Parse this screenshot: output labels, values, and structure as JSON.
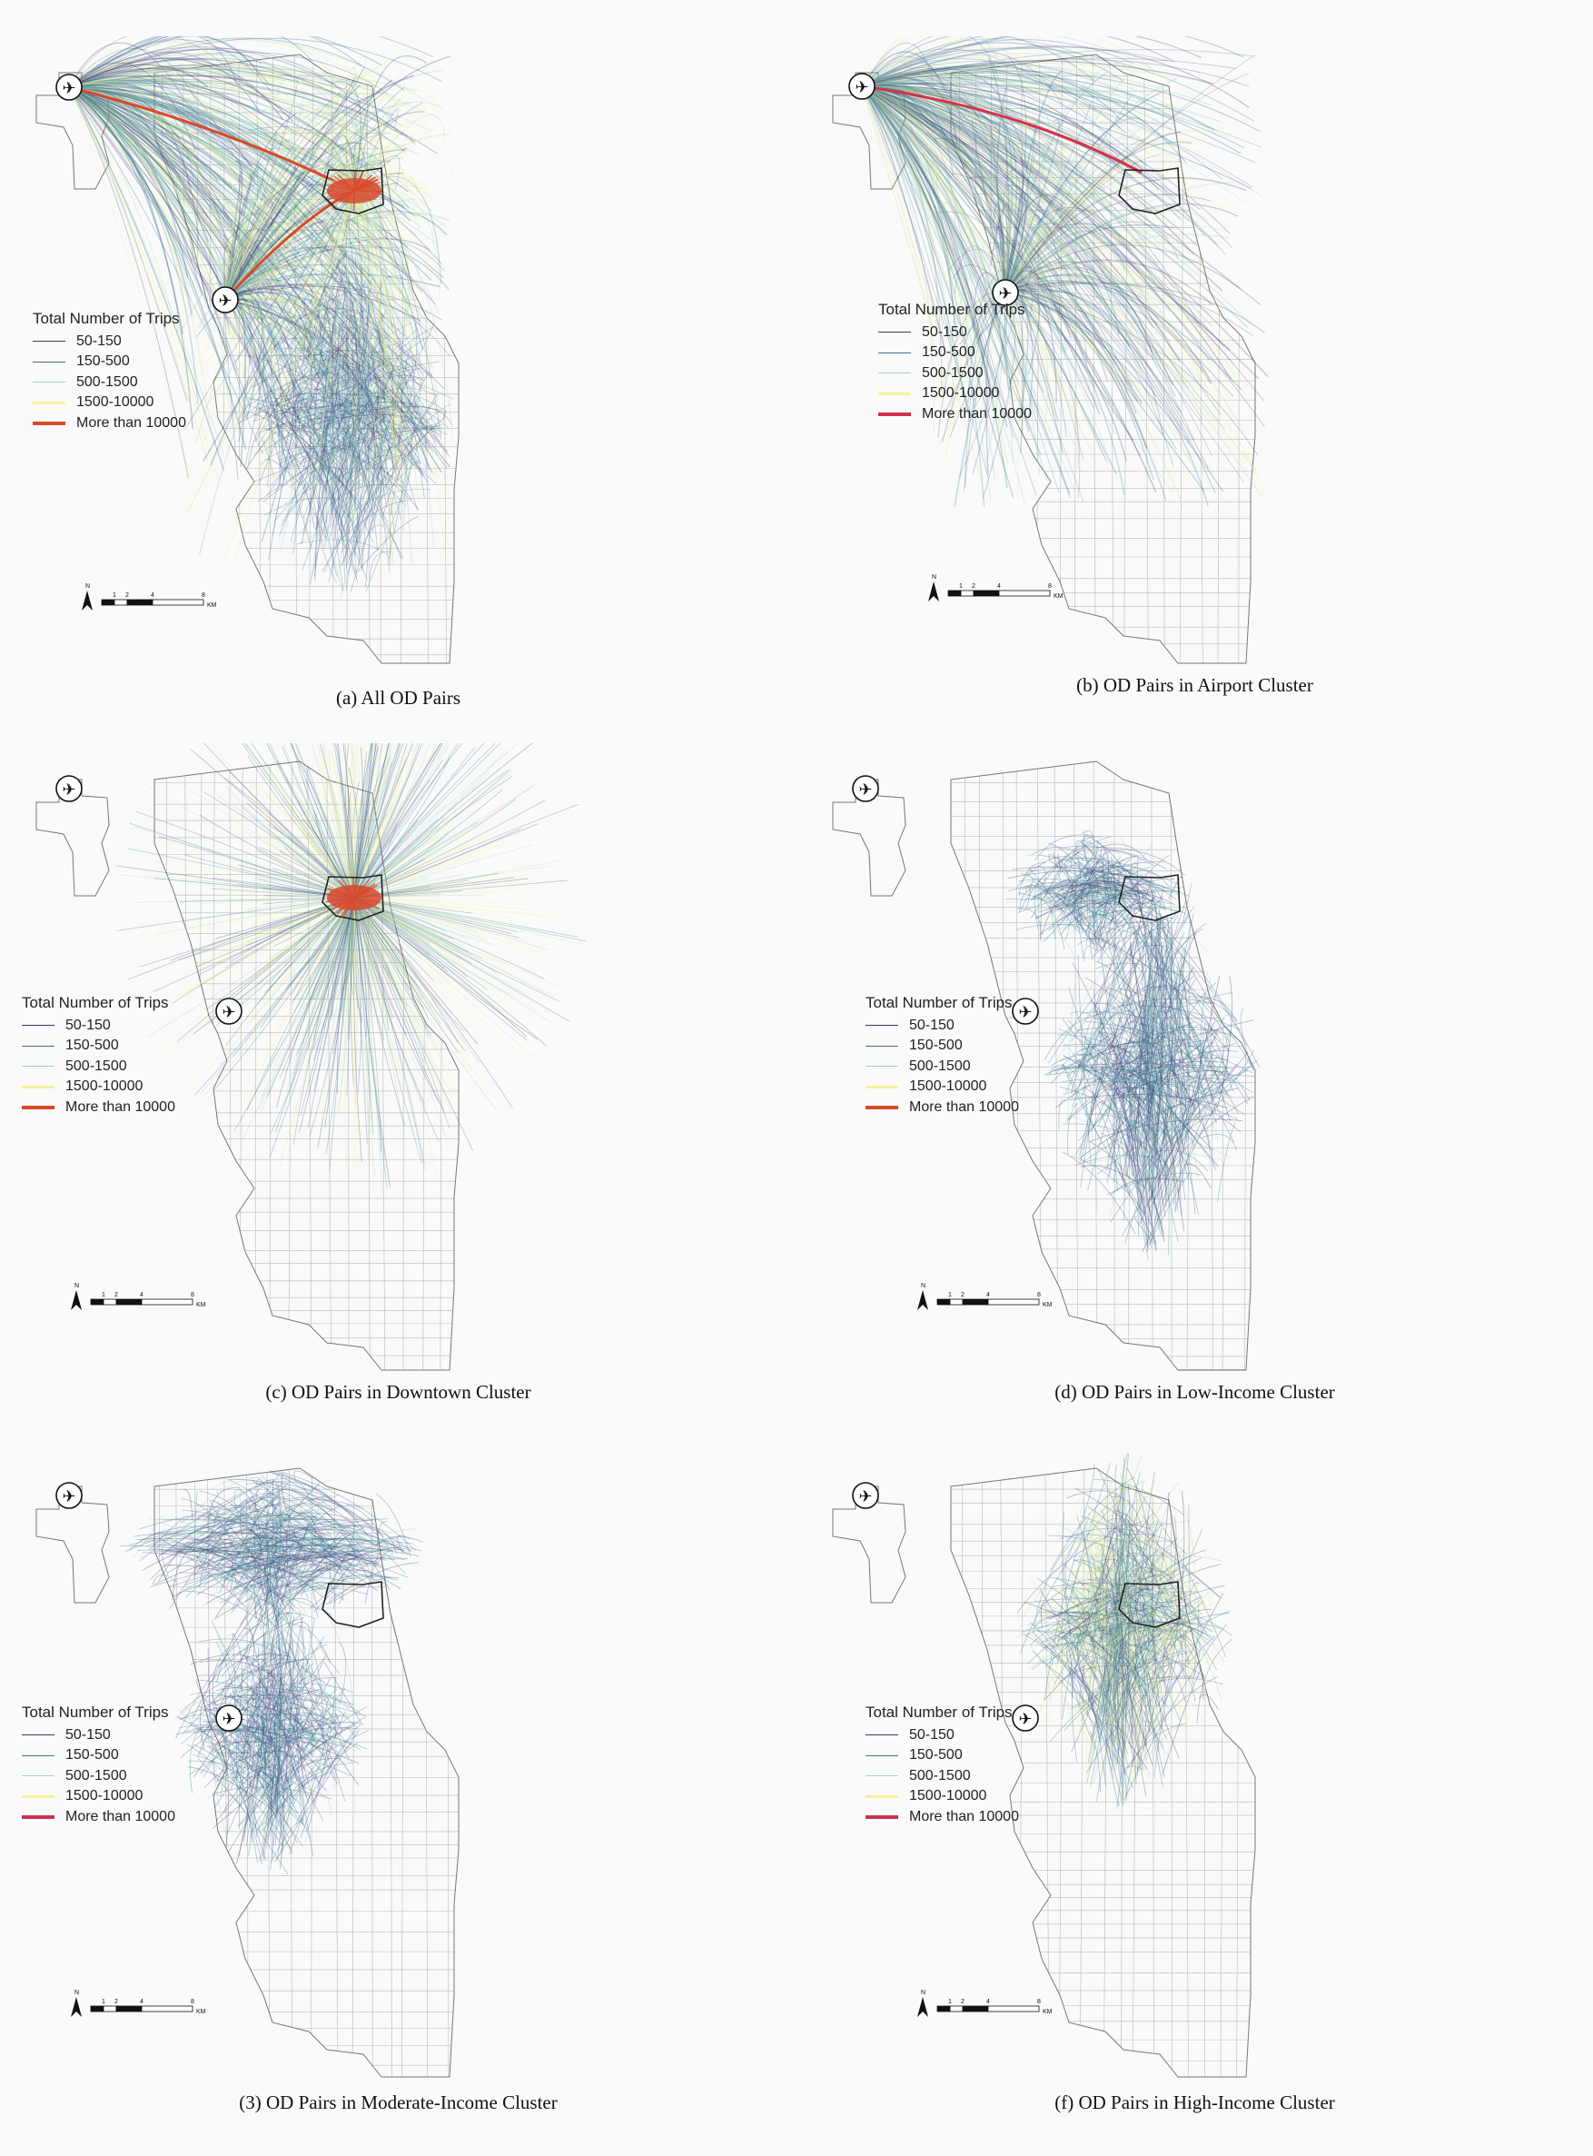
{
  "legend": {
    "title": "Total Number of Trips",
    "classes": [
      {
        "label": "50-150",
        "color": "#3a3a66"
      },
      {
        "label": "150-500",
        "color": "#3f6f8f"
      },
      {
        "label": "500-1500",
        "color": "#9fd3c7"
      },
      {
        "label": "1500-10000",
        "color": "#f3f39a"
      },
      {
        "label": "More than 10000",
        "color": "#d9482b"
      }
    ]
  },
  "scalebar": {
    "north": "N",
    "ticks": [
      "1",
      "2",
      "4",
      "8"
    ],
    "unit": "KM"
  },
  "panels": [
    {
      "id": "a",
      "caption": "(a) All OD Pairs",
      "topRed": "#d9482b",
      "intensity": 1.0
    },
    {
      "id": "b",
      "caption": "(b) OD Pairs in Airport Cluster",
      "topRed": "#d9304a",
      "intensity": 0.7
    },
    {
      "id": "c",
      "caption": "(c) OD Pairs in Downtown Cluster",
      "topRed": "#d9482b",
      "intensity": 0.9
    },
    {
      "id": "d",
      "caption": "(d) OD Pairs in Low-Income Cluster",
      "topRed": "#d9482b",
      "intensity": 0.6
    },
    {
      "id": "e",
      "caption": "(3) OD Pairs in Moderate-Income Cluster",
      "topRed": "#c8344e",
      "intensity": 0.6
    },
    {
      "id": "f",
      "caption": "(f) OD Pairs in High-Income Cluster",
      "topRed": "#c8344e",
      "intensity": 0.7
    }
  ]
}
